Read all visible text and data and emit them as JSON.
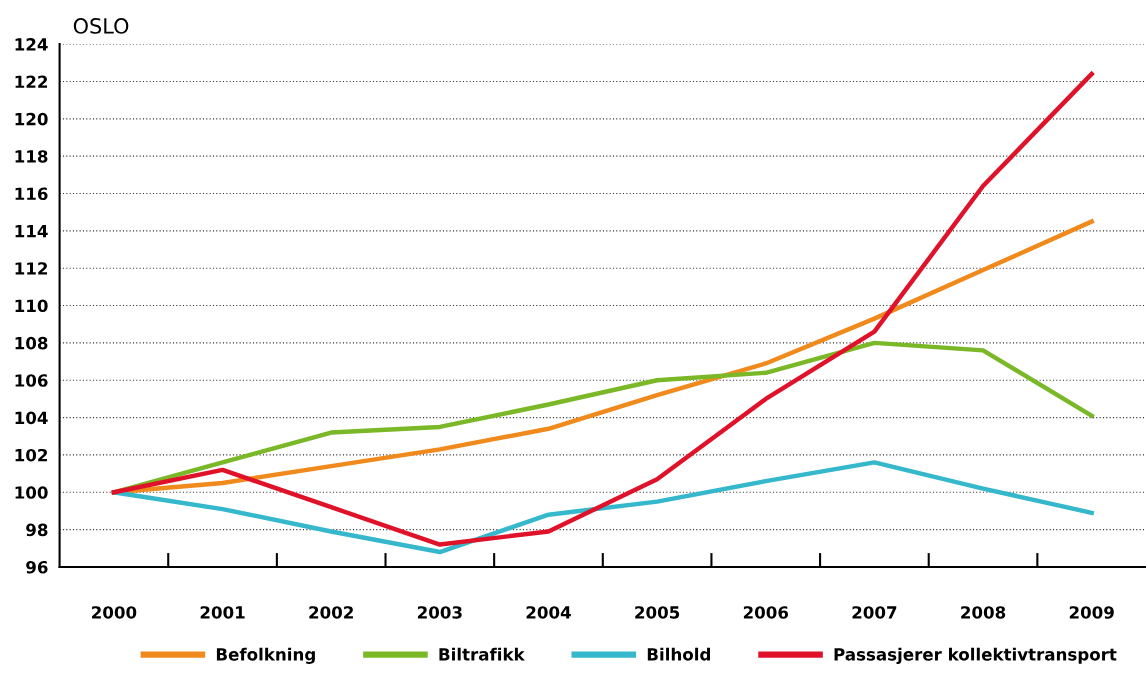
{
  "chart_data": {
    "type": "line",
    "title": "OSLO",
    "categories": [
      "2000",
      "2001",
      "2002",
      "2003",
      "2004",
      "2005",
      "2006",
      "2007",
      "2008",
      "2009"
    ],
    "series": [
      {
        "name": "Befolkning",
        "color": "#f08a1c",
        "values": [
          100,
          100.5,
          101.4,
          102.3,
          103.4,
          105.2,
          106.9,
          109.3,
          111.9,
          114.5
        ]
      },
      {
        "name": "Biltrafikk",
        "color": "#7ab828",
        "values": [
          100,
          101.6,
          103.2,
          103.5,
          104.7,
          106.0,
          106.4,
          108.0,
          107.6,
          104.1
        ]
      },
      {
        "name": "Bilhold",
        "color": "#35b7cc",
        "values": [
          100,
          99.1,
          97.9,
          96.8,
          98.8,
          99.5,
          100.6,
          101.6,
          100.2,
          98.9
        ]
      },
      {
        "name": "Passasjerer kollektivtransport",
        "color": "#e0122a",
        "values": [
          100,
          101.2,
          99.2,
          97.2,
          97.9,
          100.7,
          105.0,
          108.6,
          116.4,
          122.4
        ]
      }
    ],
    "ylim": [
      96,
      124
    ],
    "yticks": [
      96,
      98,
      100,
      102,
      104,
      106,
      108,
      110,
      112,
      114,
      116,
      118,
      120,
      122,
      124
    ],
    "grid": "y",
    "legend": "bottom",
    "marker": "none",
    "line_style": "solid"
  }
}
